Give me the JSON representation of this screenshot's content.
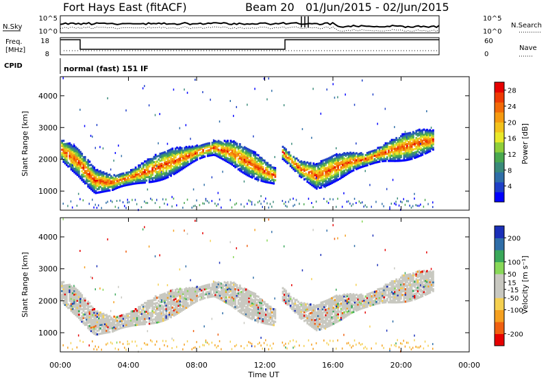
{
  "header": {
    "station": "Fort Hays East (fitACF)",
    "beam": "Beam 20",
    "date_range": "01/Jun/2015 - 02/Jun/2015"
  },
  "panels": {
    "nsky_label": "N.Sky",
    "nsky_ticks": [
      "10^5",
      "10^0"
    ],
    "nsearch_label": "N.Search",
    "nsearch_ticks": [
      "10^5",
      "10^0"
    ],
    "freq_label_line1": "Freq.",
    "freq_label_line2": "[MHz]",
    "freq_ticks": [
      "18",
      "8"
    ],
    "nave_label": "Nave",
    "nave_ticks": [
      "60",
      "0"
    ],
    "cpid_label": "CPID",
    "cpid_text": "normal (fast) 151 IF"
  },
  "colors": {
    "power_scale": [
      "#0000ff",
      "#1e3fc8",
      "#2f6ea8",
      "#3a8a7a",
      "#4aa84f",
      "#8fce3a",
      "#e8e82a",
      "#f2c21c",
      "#f59a10",
      "#f26a08",
      "#ee3a04",
      "#e60000"
    ],
    "velocity_scale": [
      "#e60000",
      "#f06010",
      "#f5a020",
      "#f5d050",
      "#c8c8c0",
      "#c8c8c0",
      "#88d858",
      "#3aa85a",
      "#2f6ea8",
      "#1a2fb8"
    ]
  },
  "chart_data": [
    {
      "type": "heatmap",
      "title": "",
      "ylabel": "Slant Range [km]",
      "yticks": [
        "1000",
        "2000",
        "3000",
        "4000"
      ],
      "ylim": [
        400,
        4600
      ],
      "xlim": [
        0,
        24
      ],
      "colorbar_label": "Power [dB]",
      "colorbar_ticks": [
        "4",
        "8",
        "12",
        "16",
        "20",
        "24",
        "28"
      ],
      "colorbar_range": [
        0,
        30
      ],
      "data_gap_hours": [
        12.6,
        13.0
      ],
      "echo_band": {
        "x_hours": [
          0.0,
          1.0,
          2.0,
          3.0,
          4.0,
          5.0,
          6.0,
          7.0,
          8.0,
          9.0,
          10.0,
          11.0,
          12.0,
          12.6,
          13.0,
          14.0,
          15.0,
          16.0,
          17.0,
          18.0,
          19.0,
          20.0,
          21.0,
          21.9
        ],
        "center_km": [
          2300,
          1900,
          1300,
          1250,
          1400,
          1600,
          1800,
          2000,
          2200,
          2350,
          2200,
          1900,
          1600,
          1450,
          2200,
          1700,
          1450,
          1700,
          1900,
          2000,
          2200,
          2350,
          2500,
          2600
        ]
      }
    },
    {
      "type": "heatmap",
      "title": "",
      "xlabel": "Time UT",
      "ylabel": "Slant Range [km]",
      "xticks": [
        "00:00",
        "04:00",
        "08:00",
        "12:00",
        "16:00",
        "20:00",
        "00:00"
      ],
      "yticks": [
        "1000",
        "2000",
        "3000",
        "4000"
      ],
      "ylim": [
        400,
        4600
      ],
      "xlim": [
        0,
        24
      ],
      "colorbar_label": "Velocity [m s⁻¹]",
      "colorbar_ticks": [
        "-200",
        "-100",
        "-50",
        "-15",
        "15",
        "50",
        "100",
        "200"
      ],
      "colorbar_range": [
        -250,
        250
      ]
    }
  ]
}
